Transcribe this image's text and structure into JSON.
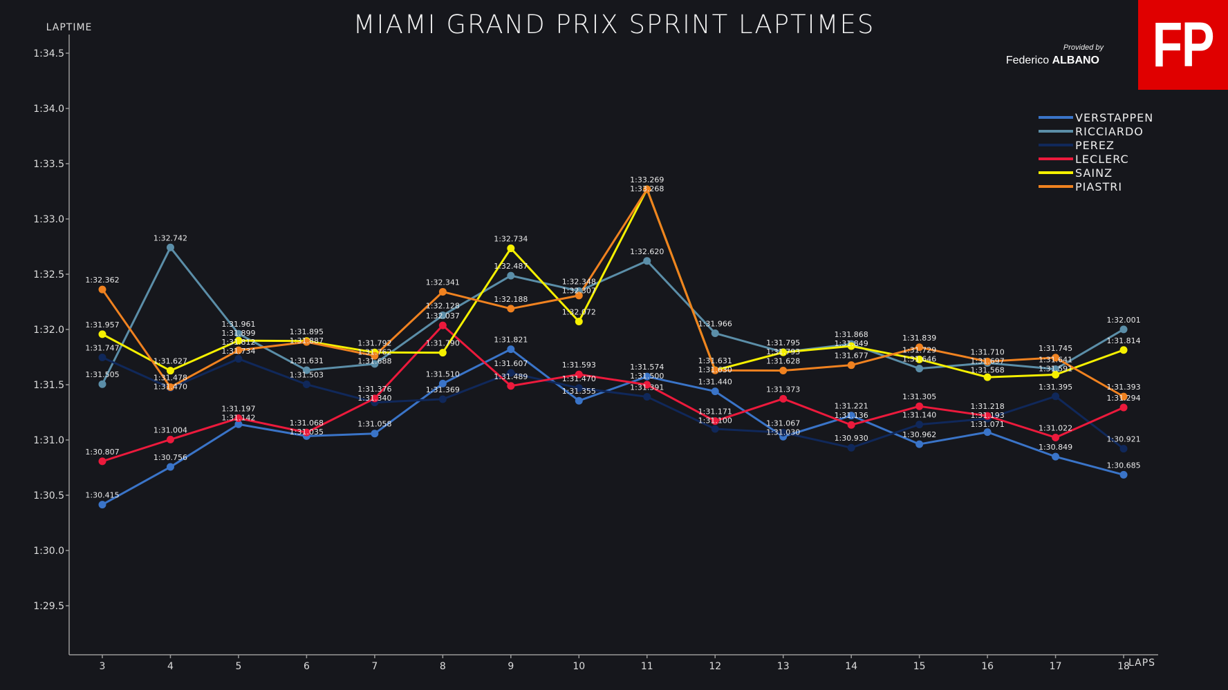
{
  "header": {
    "provided_by": "Provided by",
    "author_first": "Federico",
    "author_last": "ALBANO",
    "logo_text": "FP"
  },
  "chart_data": {
    "type": "line",
    "title": "MIAMI GRAND PRIX SPRINT LAPTIMES",
    "xlabel": "LAPS",
    "ylabel": "LAPTIME",
    "x": [
      3,
      4,
      5,
      6,
      7,
      8,
      9,
      10,
      11,
      12,
      13,
      14,
      15,
      16,
      17,
      18
    ],
    "ylim": [
      89.0,
      94.7
    ],
    "yticks": [
      89.5,
      90.0,
      90.5,
      91.0,
      91.5,
      92.0,
      92.5,
      93.0,
      93.5,
      94.0,
      94.5
    ],
    "ytick_labels": [
      "1:29.5",
      "1:30.0",
      "1:30.5",
      "1:31.0",
      "1:31.5",
      "1:32.0",
      "1:32.5",
      "1:33.0",
      "1:33.5",
      "1:34.0",
      "1:34.5"
    ],
    "legend_position": "top-right",
    "grid": false,
    "series": [
      {
        "name": "VERSTAPPEN",
        "color": "#3a74c8",
        "values": [
          "1:30.415",
          "1:30.756",
          "1:31.142",
          "1:31.035",
          "1:31.058",
          "1:31.510",
          "1:31.821",
          "1:31.355",
          "1:31.574",
          "1:31.440",
          "1:31.030",
          "1:31.221",
          "1:30.962",
          "1:31.071",
          "1:30.849",
          "1:30.685"
        ]
      },
      {
        "name": "RICCIARDO",
        "color": "#5b8ea8",
        "values": [
          "1:31.505",
          "1:32.742",
          "1:31.961",
          "1:31.631",
          "1:31.688",
          "1:32.128",
          "1:32.487",
          "1:32.348",
          "1:32.620",
          "1:31.966",
          "1:31.795",
          "1:31.868",
          "1:31.646",
          "1:31.697",
          "1:31.641",
          "1:32.001"
        ]
      },
      {
        "name": "PEREZ",
        "color": "#10285a",
        "values": [
          "1:31.747",
          "1:31.470",
          "1:31.734",
          "1:31.503",
          "1:31.340",
          "1:31.369",
          "1:31.607",
          "1:31.470",
          "1:31.391",
          "1:31.100",
          "1:31.067",
          "1:30.930",
          "1:31.140",
          "1:31.193",
          "1:31.395",
          "1:30.921"
        ]
      },
      {
        "name": "LECLERC",
        "color": "#ec1a3c",
        "values": [
          "1:30.807",
          "1:31.004",
          "1:31.197",
          "1:31.068",
          "1:31.376",
          "1:32.037",
          "1:31.489",
          "1:31.593",
          "1:31.500",
          "1:31.171",
          "1:31.373",
          "1:31.136",
          "1:31.305",
          "1:31.218",
          "1:31.022",
          "1:31.294"
        ]
      },
      {
        "name": "SAINZ",
        "color": "#f5f000",
        "values": [
          "1:31.957",
          "1:31.627",
          "1:31.899",
          "1:31.895",
          "1:31.792",
          "1:31.790",
          "1:32.734",
          "1:32.072",
          "1:33.269",
          "1:31.631",
          "1:31.793",
          "1:31.849",
          "1:31.729",
          "1:31.568",
          "1:31.591",
          "1:31.814"
        ]
      },
      {
        "name": "PIASTRI",
        "color": "#f08220",
        "values": [
          "1:32.362",
          "1:31.478",
          "1:31.812",
          "1:31.887",
          "1:31.762",
          "1:32.341",
          "1:32.188",
          "1:32.307",
          "1:33.268",
          "1:31.630",
          "1:31.628",
          "1:31.677",
          "1:31.839",
          "1:31.710",
          "1:31.745",
          "1:31.393"
        ]
      }
    ]
  }
}
